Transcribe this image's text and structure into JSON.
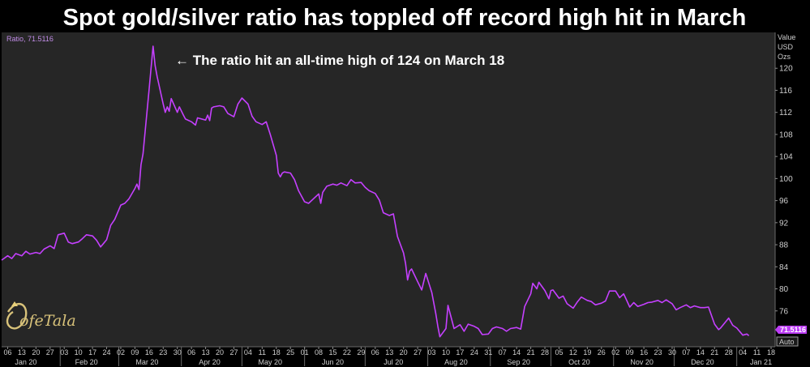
{
  "title": "Spot gold/silver ratio has toppled off record high hit in March",
  "annotation": "← The ratio hit an all-time high of 124 on March 18",
  "brand": "ofeTala",
  "chart_data": {
    "type": "line",
    "legend_label": "Ratio, 71.5116",
    "ylabel_lines": [
      "Value",
      "USD",
      "Ozs"
    ],
    "ylim": [
      69.5,
      126.5
    ],
    "yticks": [
      76,
      80,
      84,
      88,
      92,
      96,
      100,
      104,
      108,
      112,
      116,
      120
    ],
    "last_value_label": "71.5116",
    "scale_button": "Auto",
    "x_range": [
      "2020-01-03",
      "2021-01-20"
    ],
    "day_ticks": [
      "06",
      "13",
      "20",
      "27",
      "03",
      "10",
      "17",
      "24",
      "02",
      "09",
      "16",
      "23",
      "30",
      "06",
      "13",
      "20",
      "27",
      "04",
      "11",
      "18",
      "25",
      "01",
      "08",
      "15",
      "22",
      "29",
      "06",
      "13",
      "20",
      "27",
      "03",
      "10",
      "17",
      "24",
      "31",
      "07",
      "14",
      "21",
      "28",
      "05",
      "12",
      "19",
      "26",
      "02",
      "09",
      "16",
      "23",
      "30",
      "07",
      "14",
      "21",
      "28",
      "04",
      "11",
      "18"
    ],
    "day_tick_dates": [
      "2020-01-06",
      "2020-01-13",
      "2020-01-20",
      "2020-01-27",
      "2020-02-03",
      "2020-02-10",
      "2020-02-17",
      "2020-02-24",
      "2020-03-02",
      "2020-03-09",
      "2020-03-16",
      "2020-03-23",
      "2020-03-30",
      "2020-04-06",
      "2020-04-13",
      "2020-04-20",
      "2020-04-27",
      "2020-05-04",
      "2020-05-11",
      "2020-05-18",
      "2020-05-25",
      "2020-06-01",
      "2020-06-08",
      "2020-06-15",
      "2020-06-22",
      "2020-06-29",
      "2020-07-06",
      "2020-07-13",
      "2020-07-20",
      "2020-07-27",
      "2020-08-03",
      "2020-08-10",
      "2020-08-17",
      "2020-08-24",
      "2020-08-31",
      "2020-09-07",
      "2020-09-14",
      "2020-09-21",
      "2020-09-28",
      "2020-10-05",
      "2020-10-12",
      "2020-10-19",
      "2020-10-26",
      "2020-11-02",
      "2020-11-09",
      "2020-11-16",
      "2020-11-23",
      "2020-11-30",
      "2020-12-07",
      "2020-12-14",
      "2020-12-21",
      "2020-12-28",
      "2021-01-04",
      "2021-01-11",
      "2021-01-18"
    ],
    "month_ticks": [
      {
        "label": "Jan 20",
        "date": "2020-01-15"
      },
      {
        "label": "Feb 20",
        "date": "2020-02-14"
      },
      {
        "label": "Mar 20",
        "date": "2020-03-15"
      },
      {
        "label": "Apr 20",
        "date": "2020-04-15"
      },
      {
        "label": "May 20",
        "date": "2020-05-15"
      },
      {
        "label": "Jun 20",
        "date": "2020-06-15"
      },
      {
        "label": "Jul 20",
        "date": "2020-07-15"
      },
      {
        "label": "Aug 20",
        "date": "2020-08-15"
      },
      {
        "label": "Sep 20",
        "date": "2020-09-15"
      },
      {
        "label": "Oct 20",
        "date": "2020-10-15"
      },
      {
        "label": "Nov 20",
        "date": "2020-11-15"
      },
      {
        "label": "Dec 20",
        "date": "2020-12-15"
      },
      {
        "label": "Jan 21",
        "date": "2021-01-13"
      }
    ],
    "month_separators": [
      "2020-02-01",
      "2020-03-01",
      "2020-04-01",
      "2020-05-01",
      "2020-06-01",
      "2020-07-01",
      "2020-08-01",
      "2020-09-01",
      "2020-10-01",
      "2020-11-01",
      "2020-12-01",
      "2021-01-01"
    ],
    "series": [
      {
        "color": "#c540ff",
        "points": [
          [
            "2020-01-03",
            85.2
          ],
          [
            "2020-01-06",
            86.0
          ],
          [
            "2020-01-08",
            85.5
          ],
          [
            "2020-01-10",
            86.4
          ],
          [
            "2020-01-13",
            86.0
          ],
          [
            "2020-01-15",
            86.8
          ],
          [
            "2020-01-17",
            86.3
          ],
          [
            "2020-01-20",
            86.6
          ],
          [
            "2020-01-22",
            86.4
          ],
          [
            "2020-01-24",
            87.2
          ],
          [
            "2020-01-27",
            87.8
          ],
          [
            "2020-01-29",
            87.3
          ],
          [
            "2020-01-31",
            89.8
          ],
          [
            "2020-02-03",
            90.1
          ],
          [
            "2020-02-05",
            88.5
          ],
          [
            "2020-02-07",
            88.2
          ],
          [
            "2020-02-10",
            88.5
          ],
          [
            "2020-02-12",
            89.1
          ],
          [
            "2020-02-14",
            89.8
          ],
          [
            "2020-02-17",
            89.6
          ],
          [
            "2020-02-19",
            88.8
          ],
          [
            "2020-02-21",
            87.6
          ],
          [
            "2020-02-24",
            88.9
          ],
          [
            "2020-02-26",
            91.5
          ],
          [
            "2020-02-28",
            92.6
          ],
          [
            "2020-03-02",
            95.2
          ],
          [
            "2020-03-04",
            95.5
          ],
          [
            "2020-03-06",
            96.3
          ],
          [
            "2020-03-09",
            98.2
          ],
          [
            "2020-03-10",
            99.0
          ],
          [
            "2020-03-11",
            98.0
          ],
          [
            "2020-03-12",
            102.5
          ],
          [
            "2020-03-13",
            104.5
          ],
          [
            "2020-03-16",
            116.0
          ],
          [
            "2020-03-17",
            120.0
          ],
          [
            "2020-03-18",
            124.0
          ],
          [
            "2020-03-19",
            120.5
          ],
          [
            "2020-03-20",
            118.5
          ],
          [
            "2020-03-23",
            113.5
          ],
          [
            "2020-03-24",
            112.0
          ],
          [
            "2020-03-25",
            113.0
          ],
          [
            "2020-03-26",
            112.2
          ],
          [
            "2020-03-27",
            114.5
          ],
          [
            "2020-03-30",
            112.0
          ],
          [
            "2020-03-31",
            113.0
          ],
          [
            "2020-04-02",
            111.5
          ],
          [
            "2020-04-03",
            110.8
          ],
          [
            "2020-04-06",
            110.3
          ],
          [
            "2020-04-08",
            109.7
          ],
          [
            "2020-04-09",
            111.0
          ],
          [
            "2020-04-13",
            110.6
          ],
          [
            "2020-04-14",
            111.5
          ],
          [
            "2020-04-15",
            110.5
          ],
          [
            "2020-04-16",
            112.8
          ],
          [
            "2020-04-17",
            113.0
          ],
          [
            "2020-04-20",
            113.2
          ],
          [
            "2020-04-22",
            113.0
          ],
          [
            "2020-04-24",
            111.8
          ],
          [
            "2020-04-27",
            111.2
          ],
          [
            "2020-04-29",
            113.5
          ],
          [
            "2020-05-01",
            114.6
          ],
          [
            "2020-05-04",
            113.5
          ],
          [
            "2020-05-06",
            111.3
          ],
          [
            "2020-05-08",
            110.3
          ],
          [
            "2020-05-11",
            109.8
          ],
          [
            "2020-05-13",
            110.3
          ],
          [
            "2020-05-15",
            108.0
          ],
          [
            "2020-05-18",
            104.2
          ],
          [
            "2020-05-19",
            101.0
          ],
          [
            "2020-05-20",
            100.3
          ],
          [
            "2020-05-21",
            101.0
          ],
          [
            "2020-05-22",
            101.2
          ],
          [
            "2020-05-25",
            101.0
          ],
          [
            "2020-05-27",
            99.8
          ],
          [
            "2020-05-29",
            97.8
          ],
          [
            "2020-06-01",
            95.8
          ],
          [
            "2020-06-03",
            95.5
          ],
          [
            "2020-06-05",
            96.2
          ],
          [
            "2020-06-08",
            97.2
          ],
          [
            "2020-06-09",
            95.5
          ],
          [
            "2020-06-10",
            97.5
          ],
          [
            "2020-06-12",
            98.6
          ],
          [
            "2020-06-15",
            99.0
          ],
          [
            "2020-06-17",
            98.8
          ],
          [
            "2020-06-19",
            99.2
          ],
          [
            "2020-06-22",
            98.7
          ],
          [
            "2020-06-24",
            99.8
          ],
          [
            "2020-06-26",
            99.2
          ],
          [
            "2020-06-29",
            99.3
          ],
          [
            "2020-07-01",
            98.4
          ],
          [
            "2020-07-03",
            97.8
          ],
          [
            "2020-07-06",
            97.3
          ],
          [
            "2020-07-08",
            96.1
          ],
          [
            "2020-07-10",
            93.8
          ],
          [
            "2020-07-13",
            93.3
          ],
          [
            "2020-07-15",
            93.6
          ],
          [
            "2020-07-17",
            89.5
          ],
          [
            "2020-07-20",
            86.5
          ],
          [
            "2020-07-21",
            84.6
          ],
          [
            "2020-07-22",
            81.6
          ],
          [
            "2020-07-23",
            83.2
          ],
          [
            "2020-07-24",
            83.6
          ],
          [
            "2020-07-27",
            81.3
          ],
          [
            "2020-07-29",
            79.8
          ],
          [
            "2020-07-31",
            82.8
          ],
          [
            "2020-08-03",
            79.3
          ],
          [
            "2020-08-05",
            75.5
          ],
          [
            "2020-08-06",
            73.2
          ],
          [
            "2020-08-07",
            71.3
          ],
          [
            "2020-08-10",
            72.8
          ],
          [
            "2020-08-11",
            77.0
          ],
          [
            "2020-08-12",
            75.6
          ],
          [
            "2020-08-14",
            72.8
          ],
          [
            "2020-08-17",
            73.5
          ],
          [
            "2020-08-19",
            72.3
          ],
          [
            "2020-08-21",
            73.6
          ],
          [
            "2020-08-24",
            73.2
          ],
          [
            "2020-08-26",
            72.8
          ],
          [
            "2020-08-28",
            71.7
          ],
          [
            "2020-08-31",
            71.8
          ],
          [
            "2020-09-02",
            72.8
          ],
          [
            "2020-09-04",
            73.1
          ],
          [
            "2020-09-07",
            72.8
          ],
          [
            "2020-09-09",
            72.3
          ],
          [
            "2020-09-11",
            72.8
          ],
          [
            "2020-09-14",
            73.0
          ],
          [
            "2020-09-16",
            72.7
          ],
          [
            "2020-09-18",
            76.8
          ],
          [
            "2020-09-21",
            79.1
          ],
          [
            "2020-09-22",
            81.0
          ],
          [
            "2020-09-24",
            80.0
          ],
          [
            "2020-09-25",
            81.2
          ],
          [
            "2020-09-28",
            79.7
          ],
          [
            "2020-09-30",
            78.2
          ],
          [
            "2020-10-01",
            79.7
          ],
          [
            "2020-10-02",
            79.8
          ],
          [
            "2020-10-05",
            78.3
          ],
          [
            "2020-10-07",
            78.7
          ],
          [
            "2020-10-09",
            77.3
          ],
          [
            "2020-10-12",
            76.5
          ],
          [
            "2020-10-14",
            77.6
          ],
          [
            "2020-10-16",
            78.5
          ],
          [
            "2020-10-19",
            77.9
          ],
          [
            "2020-10-21",
            77.7
          ],
          [
            "2020-10-23",
            77.1
          ],
          [
            "2020-10-26",
            77.4
          ],
          [
            "2020-10-28",
            77.8
          ],
          [
            "2020-10-30",
            79.6
          ],
          [
            "2020-11-02",
            79.6
          ],
          [
            "2020-11-04",
            78.4
          ],
          [
            "2020-11-06",
            79.1
          ],
          [
            "2020-11-09",
            76.7
          ],
          [
            "2020-11-11",
            77.5
          ],
          [
            "2020-11-13",
            76.8
          ],
          [
            "2020-11-16",
            77.2
          ],
          [
            "2020-11-18",
            77.5
          ],
          [
            "2020-11-20",
            77.6
          ],
          [
            "2020-11-23",
            77.9
          ],
          [
            "2020-11-25",
            77.5
          ],
          [
            "2020-11-27",
            78.0
          ],
          [
            "2020-11-30",
            77.3
          ],
          [
            "2020-12-02",
            76.2
          ],
          [
            "2020-12-04",
            76.6
          ],
          [
            "2020-12-07",
            77.1
          ],
          [
            "2020-12-09",
            76.6
          ],
          [
            "2020-12-11",
            76.9
          ],
          [
            "2020-12-14",
            76.6
          ],
          [
            "2020-12-16",
            76.6
          ],
          [
            "2020-12-18",
            76.7
          ],
          [
            "2020-12-21",
            73.6
          ],
          [
            "2020-12-23",
            72.6
          ],
          [
            "2020-12-24",
            72.9
          ],
          [
            "2020-12-28",
            74.7
          ],
          [
            "2020-12-30",
            73.4
          ],
          [
            "2021-01-01",
            72.9
          ],
          [
            "2021-01-04",
            71.6
          ],
          [
            "2021-01-06",
            71.8
          ],
          [
            "2021-01-07",
            71.5
          ]
        ]
      }
    ]
  }
}
